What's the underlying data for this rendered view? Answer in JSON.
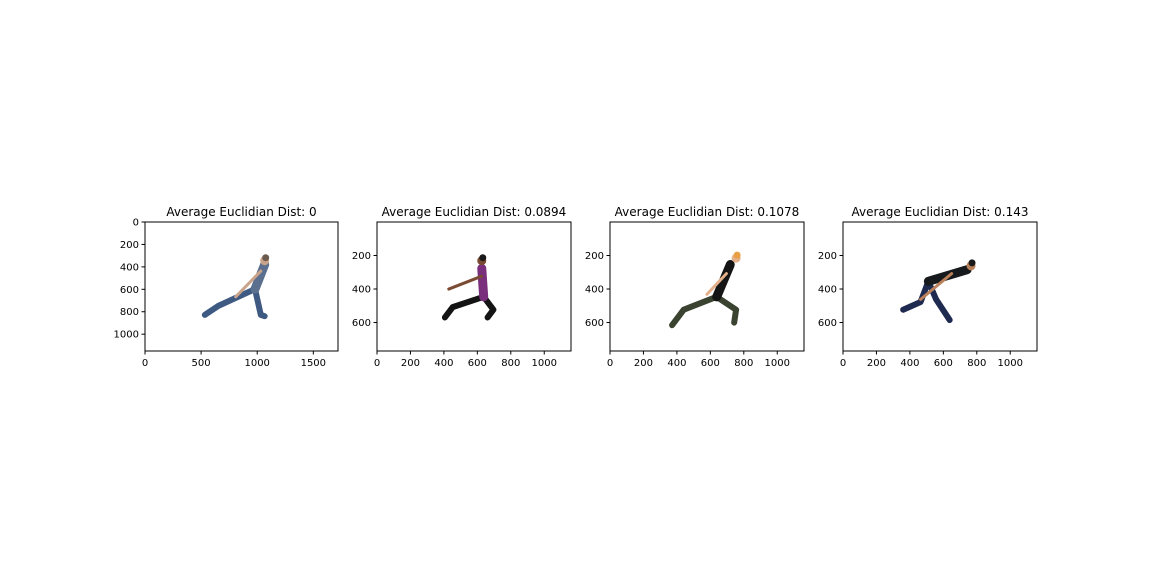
{
  "chart_data": [
    {
      "type": "image",
      "title": "Average Euclidian Dist: 0",
      "xlim": [
        0,
        1720
      ],
      "ylim": [
        1150,
        0
      ],
      "xticks": [
        0,
        500,
        1000,
        1500
      ],
      "yticks": [
        0,
        200,
        400,
        600,
        800,
        1000
      ],
      "image_content": "person in lunge pose, gray-blue clothing",
      "palette": {
        "top": "#5b6f8e",
        "bottom": "#3e5a82",
        "skin": "#c9a48a",
        "hair": "#6b5a4e"
      }
    },
    {
      "type": "image",
      "title": "Average Euclidian Dist: 0.0894",
      "xlim": [
        0,
        1160
      ],
      "ylim": [
        770,
        0
      ],
      "xticks": [
        0,
        200,
        400,
        600,
        800,
        1000
      ],
      "yticks": [
        200,
        400,
        600
      ],
      "image_content": "person in lunge pose, purple top and black pants",
      "palette": {
        "top": "#7a2f7d",
        "bottom": "#141414",
        "skin": "#7a4a32",
        "hair": "#1a1a1a"
      }
    },
    {
      "type": "image",
      "title": "Average Euclidian Dist: 0.1078",
      "xlim": [
        0,
        1160
      ],
      "ylim": [
        770,
        0
      ],
      "xticks": [
        0,
        200,
        400,
        600,
        800,
        1000
      ],
      "yticks": [
        200,
        400,
        600
      ],
      "image_content": "person in lunge pose, black top and olive pants",
      "palette": {
        "top": "#151515",
        "bottom": "#3a4230",
        "skin": "#e3b08a",
        "hair": "#e8a045"
      }
    },
    {
      "type": "image",
      "title": "Average Euclidian Dist: 0.143",
      "xlim": [
        0,
        1160
      ],
      "ylim": [
        770,
        0
      ],
      "xticks": [
        0,
        200,
        400,
        600,
        800,
        1000
      ],
      "yticks": [
        200,
        400,
        600
      ],
      "image_content": "person bending forward in lunge, black top and navy shorts",
      "palette": {
        "top": "#161a1c",
        "bottom": "#1e2a4f",
        "skin": "#b9805a",
        "hair": "#1a1a1a"
      }
    }
  ]
}
